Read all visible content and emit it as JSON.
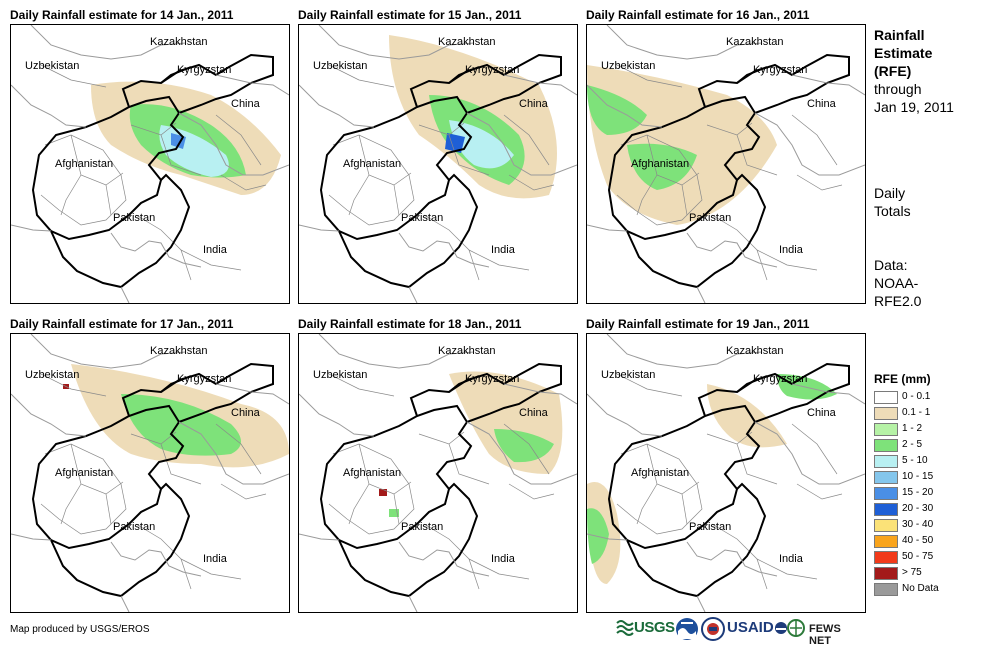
{
  "panels": [
    {
      "title": "Daily Rainfall estimate for 14 Jan., 2011"
    },
    {
      "title": "Daily Rainfall estimate for 15 Jan., 2011"
    },
    {
      "title": "Daily Rainfall estimate for 16 Jan., 2011"
    },
    {
      "title": "Daily Rainfall estimate for 17 Jan., 2011"
    },
    {
      "title": "Daily Rainfall estimate for 18 Jan., 2011"
    },
    {
      "title": "Daily Rainfall estimate for 19 Jan., 2011"
    }
  ],
  "map_labels": {
    "kazakhstan": "Kazakhstan",
    "uzbekistan": "Uzbekistan",
    "kyrgyzstan": "Kyrgyzstan",
    "china": "China",
    "afghanistan": "Afghanistan",
    "pakistan": "Pakistan",
    "india": "India"
  },
  "sidebar": {
    "title_line1": "Rainfall",
    "title_line2": "Estimate",
    "title_line3": "(RFE)",
    "through": "through",
    "date": "Jan 19, 2011",
    "daily_line1": "Daily",
    "daily_line2": "Totals",
    "data_line1": "Data:",
    "data_line2": "NOAA-",
    "data_line3": "RFE2.0"
  },
  "legend": {
    "title": "RFE (mm)",
    "items": [
      {
        "label": "0 - 0.1",
        "color": "#ffffff"
      },
      {
        "label": "0.1 - 1",
        "color": "#eedcb8"
      },
      {
        "label": "1 - 2",
        "color": "#b6f2a6"
      },
      {
        "label": "2 - 5",
        "color": "#7ee27a"
      },
      {
        "label": "5 - 10",
        "color": "#b8f0f2"
      },
      {
        "label": "10 - 15",
        "color": "#84c6ec"
      },
      {
        "label": "15 - 20",
        "color": "#4a8fe6"
      },
      {
        "label": "20 - 30",
        "color": "#1e5fd6"
      },
      {
        "label": "30 - 40",
        "color": "#fbe278"
      },
      {
        "label": "40 - 50",
        "color": "#f9a41c"
      },
      {
        "label": "50 - 75",
        "color": "#f23a1a"
      },
      {
        "label": "> 75",
        "color": "#a31a1a"
      },
      {
        "label": "No Data",
        "color": "#9a9a9a"
      }
    ]
  },
  "credit": "Map produced by USGS/EROS",
  "logos": {
    "usgs": "USGS",
    "usaid": "USAID",
    "fewsnet": "FEWS NET"
  }
}
